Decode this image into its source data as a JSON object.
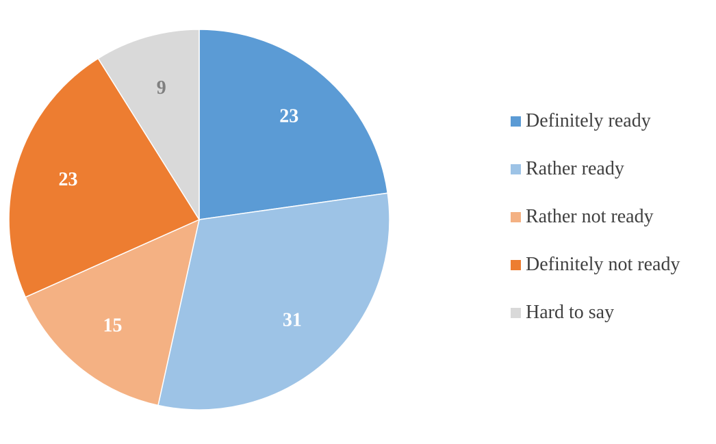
{
  "chart_data": {
    "type": "pie",
    "categories": [
      "Definitely ready",
      "Rather ready",
      "Rather not ready",
      "Definitely not ready",
      "Hard to say"
    ],
    "values": [
      23,
      31,
      15,
      23,
      9
    ],
    "colors": [
      "#5B9BD5",
      "#9DC3E6",
      "#F4B183",
      "#ED7D31",
      "#D9D9D9"
    ],
    "label_colors": [
      "#ffffff",
      "#ffffff",
      "#ffffff",
      "#ffffff",
      "#7F7F7F"
    ],
    "start_angle": "12 o'clock",
    "direction": "clockwise",
    "legend_position": "right"
  },
  "legend": {
    "items": [
      {
        "label": "Definitely ready",
        "color": "#5B9BD5"
      },
      {
        "label": "Rather ready",
        "color": "#9DC3E6"
      },
      {
        "label": "Rather not ready",
        "color": "#F4B183"
      },
      {
        "label": "Definitely not ready",
        "color": "#ED7D31"
      },
      {
        "label": "Hard to say",
        "color": "#D9D9D9"
      }
    ]
  }
}
